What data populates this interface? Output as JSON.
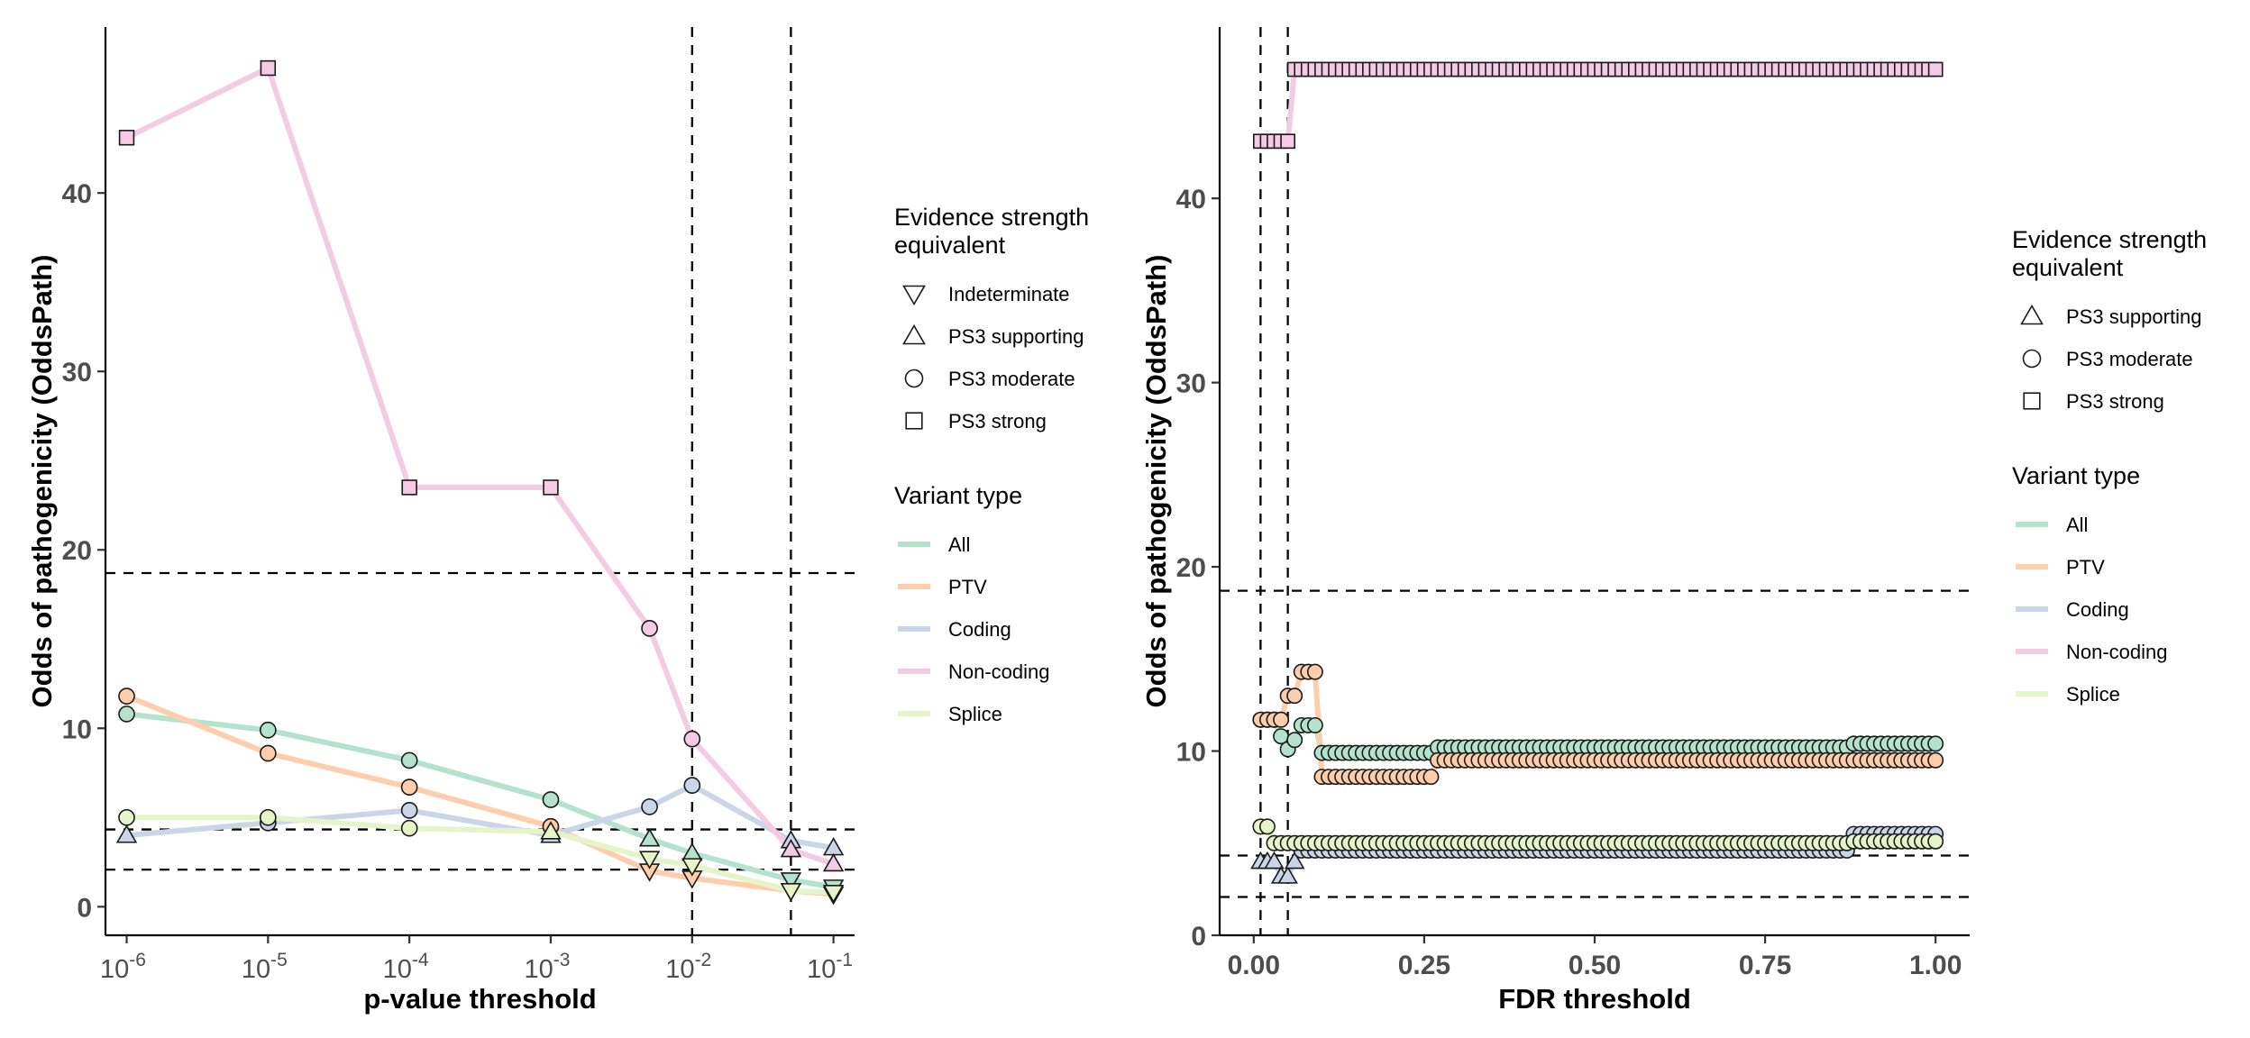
{
  "chart_data": [
    {
      "type": "line",
      "xlabel": "p-value threshold",
      "ylabel": "Odds of pathogenicity (OddsPath)",
      "x_scale": "log10",
      "x": [
        1e-06,
        1e-05,
        0.0001,
        0.001,
        0.005,
        0.01,
        0.05,
        0.1
      ],
      "x_ticks": [
        {
          "base": "10",
          "exp": "-6",
          "value": 1e-06
        },
        {
          "base": "10",
          "exp": "-5",
          "value": 1e-05
        },
        {
          "base": "10",
          "exp": "-4",
          "value": 0.0001
        },
        {
          "base": "10",
          "exp": "-3",
          "value": 0.001
        },
        {
          "base": "10",
          "exp": "-2",
          "value": 0.01
        },
        {
          "base": "10",
          "exp": "-1",
          "value": 0.1
        }
      ],
      "xlim": [
        7.08e-07,
        0.141
      ],
      "ylim": [
        -1.6,
        49.3
      ],
      "y_ticks": [
        0,
        10,
        20,
        30,
        40
      ],
      "y_tick_labels": [
        "0",
        "10",
        "20",
        "30",
        "40"
      ],
      "hlines": [
        18.7,
        4.33,
        2.08
      ],
      "vlines": [
        0.01,
        0.05
      ],
      "series": [
        {
          "name": "All",
          "color": "#b3e2cd",
          "values": [
            10.8,
            9.9,
            8.2,
            6.0,
            3.8,
            3.0,
            1.5,
            1.1
          ],
          "shapes": [
            "circle",
            "circle",
            "circle",
            "circle",
            "triangle-up",
            "triangle-up",
            "triangle-down",
            "triangle-down"
          ]
        },
        {
          "name": "PTV",
          "color": "#fdcdac",
          "values": [
            11.8,
            8.6,
            6.7,
            4.5,
            2.0,
            1.6,
            0.9,
            0.7
          ],
          "shapes": [
            "circle",
            "circle",
            "circle",
            "circle",
            "triangle-down",
            "triangle-down",
            "triangle-down",
            "triangle-down"
          ]
        },
        {
          "name": "Coding",
          "color": "#cbd5e8",
          "values": [
            4.0,
            4.7,
            5.4,
            4.0,
            5.6,
            6.8,
            3.7,
            3.3
          ],
          "shapes": [
            "triangle-up",
            "circle",
            "circle",
            "triangle-up",
            "circle",
            "circle",
            "triangle-up",
            "triangle-up"
          ]
        },
        {
          "name": "Non-coding",
          "color": "#f4cae4",
          "values": [
            43.1,
            47.0,
            23.5,
            23.5,
            15.6,
            9.4,
            3.2,
            2.4
          ],
          "shapes": [
            "square",
            "square",
            "square",
            "square",
            "circle",
            "circle",
            "triangle-up",
            "triangle-up"
          ]
        },
        {
          "name": "Splice",
          "color": "#e6f5c9",
          "values": [
            5.0,
            5.0,
            4.4,
            4.2,
            2.7,
            2.3,
            0.9,
            0.8
          ],
          "shapes": [
            "circle",
            "circle",
            "circle",
            "triangle-up",
            "triangle-down",
            "triangle-down",
            "triangle-down",
            "triangle-down"
          ]
        }
      ],
      "legend": {
        "placement": "right",
        "shape_title": "Evidence strength equivalent",
        "shape_items": [
          {
            "label": "Indeterminate",
            "shape": "triangle-down"
          },
          {
            "label": "PS3 supporting",
            "shape": "triangle-up"
          },
          {
            "label": "PS3 moderate",
            "shape": "circle"
          },
          {
            "label": "PS3 strong",
            "shape": "square"
          }
        ],
        "color_title": "Variant type",
        "color_items": [
          "All",
          "PTV",
          "Coding",
          "Non-coding",
          "Splice"
        ]
      }
    },
    {
      "type": "line",
      "xlabel": "FDR threshold",
      "ylabel": "Odds of pathogenicity (OddsPath)",
      "xlim": [
        -0.05,
        1.05
      ],
      "x_ticks": [
        0,
        0.25,
        0.5,
        0.75,
        1
      ],
      "x_tick_labels": [
        "0.00",
        "0.25",
        "0.50",
        "0.75",
        "1.00"
      ],
      "ylim": [
        0,
        49.3
      ],
      "y_ticks": [
        0,
        10,
        20,
        30,
        40
      ],
      "y_tick_labels": [
        "0",
        "10",
        "20",
        "30",
        "40"
      ],
      "hlines": [
        18.7,
        4.33,
        2.08
      ],
      "vlines": [
        0.01,
        0.05
      ],
      "x_start": 0.01,
      "x_step": 0.01,
      "series": [
        {
          "name": "All",
          "color": "#b3e2cd",
          "runs": [
            [
              1,
              3,
              11.7
            ],
            [
              4,
              4,
              10.8
            ],
            [
              5,
              5,
              10.1
            ],
            [
              6,
              6,
              10.6
            ],
            [
              7,
              9,
              11.4
            ],
            [
              10,
              26,
              9.9
            ],
            [
              27,
              87,
              10.2
            ],
            [
              88,
              100,
              10.4
            ]
          ],
          "shape": "circle"
        },
        {
          "name": "PTV",
          "color": "#fdcdac",
          "runs": [
            [
              1,
              4,
              11.7
            ],
            [
              5,
              6,
              13.0
            ],
            [
              7,
              9,
              14.3
            ],
            [
              10,
              26,
              8.6
            ],
            [
              27,
              100,
              9.5
            ]
          ],
          "shape": "circle"
        },
        {
          "name": "Coding",
          "color": "#cbd5e8",
          "runs": [
            [
              1,
              3,
              4.0
            ],
            [
              4,
              5,
              3.2
            ],
            [
              6,
              6,
              4.0
            ],
            [
              7,
              87,
              4.6
            ],
            [
              88,
              100,
              5.5
            ]
          ],
          "shapes_by_x": {
            "1": "triangle-up",
            "2": "triangle-up",
            "3": "triangle-up",
            "4": "triangle-up",
            "5": "triangle-up",
            "6": "triangle-up"
          },
          "shape": "circle"
        },
        {
          "name": "Non-coding",
          "color": "#f4cae4",
          "runs": [
            [
              1,
              5,
              43.1
            ],
            [
              6,
              100,
              47.0
            ]
          ],
          "shape": "square"
        },
        {
          "name": "Splice",
          "color": "#e6f5c9",
          "runs": [
            [
              1,
              2,
              5.9
            ],
            [
              3,
              87,
              5.0
            ],
            [
              88,
              100,
              5.1
            ]
          ],
          "shape": "circle"
        }
      ],
      "legend": {
        "placement": "right",
        "shape_title": "Evidence strength equivalent",
        "shape_items": [
          {
            "label": "PS3 supporting",
            "shape": "triangle-up"
          },
          {
            "label": "PS3 moderate",
            "shape": "circle"
          },
          {
            "label": "PS3 strong",
            "shape": "square"
          }
        ],
        "color_title": "Variant type",
        "color_items": [
          "All",
          "PTV",
          "Coding",
          "Non-coding",
          "Splice"
        ]
      }
    }
  ]
}
